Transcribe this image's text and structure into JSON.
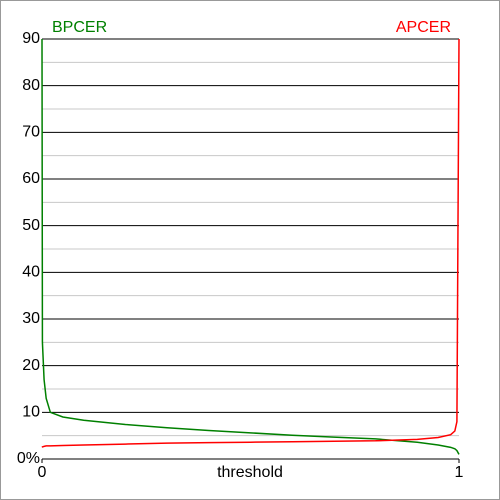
{
  "chart_data": {
    "type": "line",
    "x": [
      0,
      0.001,
      0.005,
      0.01,
      0.02,
      0.05,
      0.1,
      0.2,
      0.3,
      0.4,
      0.5,
      0.6,
      0.7,
      0.8,
      0.9,
      0.95,
      0.98,
      0.99,
      0.995,
      1
    ],
    "series": [
      {
        "name": "BPCER",
        "color": "#008000",
        "values": [
          90,
          25,
          17,
          13,
          10,
          9,
          8.3,
          7.4,
          6.7,
          6.1,
          5.6,
          5.1,
          4.7,
          4.3,
          3.6,
          3,
          2.5,
          2.2,
          1.8,
          1
        ]
      },
      {
        "name": "APCER",
        "color": "#ff0000",
        "values": [
          2.5,
          2.6,
          2.7,
          2.8,
          2.8,
          2.9,
          3.0,
          3.2,
          3.4,
          3.5,
          3.6,
          3.7,
          3.8,
          3.9,
          4.2,
          4.6,
          5.2,
          6,
          8,
          90
        ]
      }
    ],
    "xlabel": "threshold",
    "xlim": [
      0,
      1
    ],
    "xticks": [
      0,
      1
    ],
    "ylim": [
      0,
      90
    ],
    "yticks": [
      {
        "value": 0,
        "label": "0%"
      },
      10,
      20,
      30,
      40,
      50,
      60,
      70,
      80,
      90
    ],
    "minor_yticks": [
      5,
      15,
      25,
      35,
      45,
      55,
      65,
      75,
      85
    ],
    "grid": true
  }
}
